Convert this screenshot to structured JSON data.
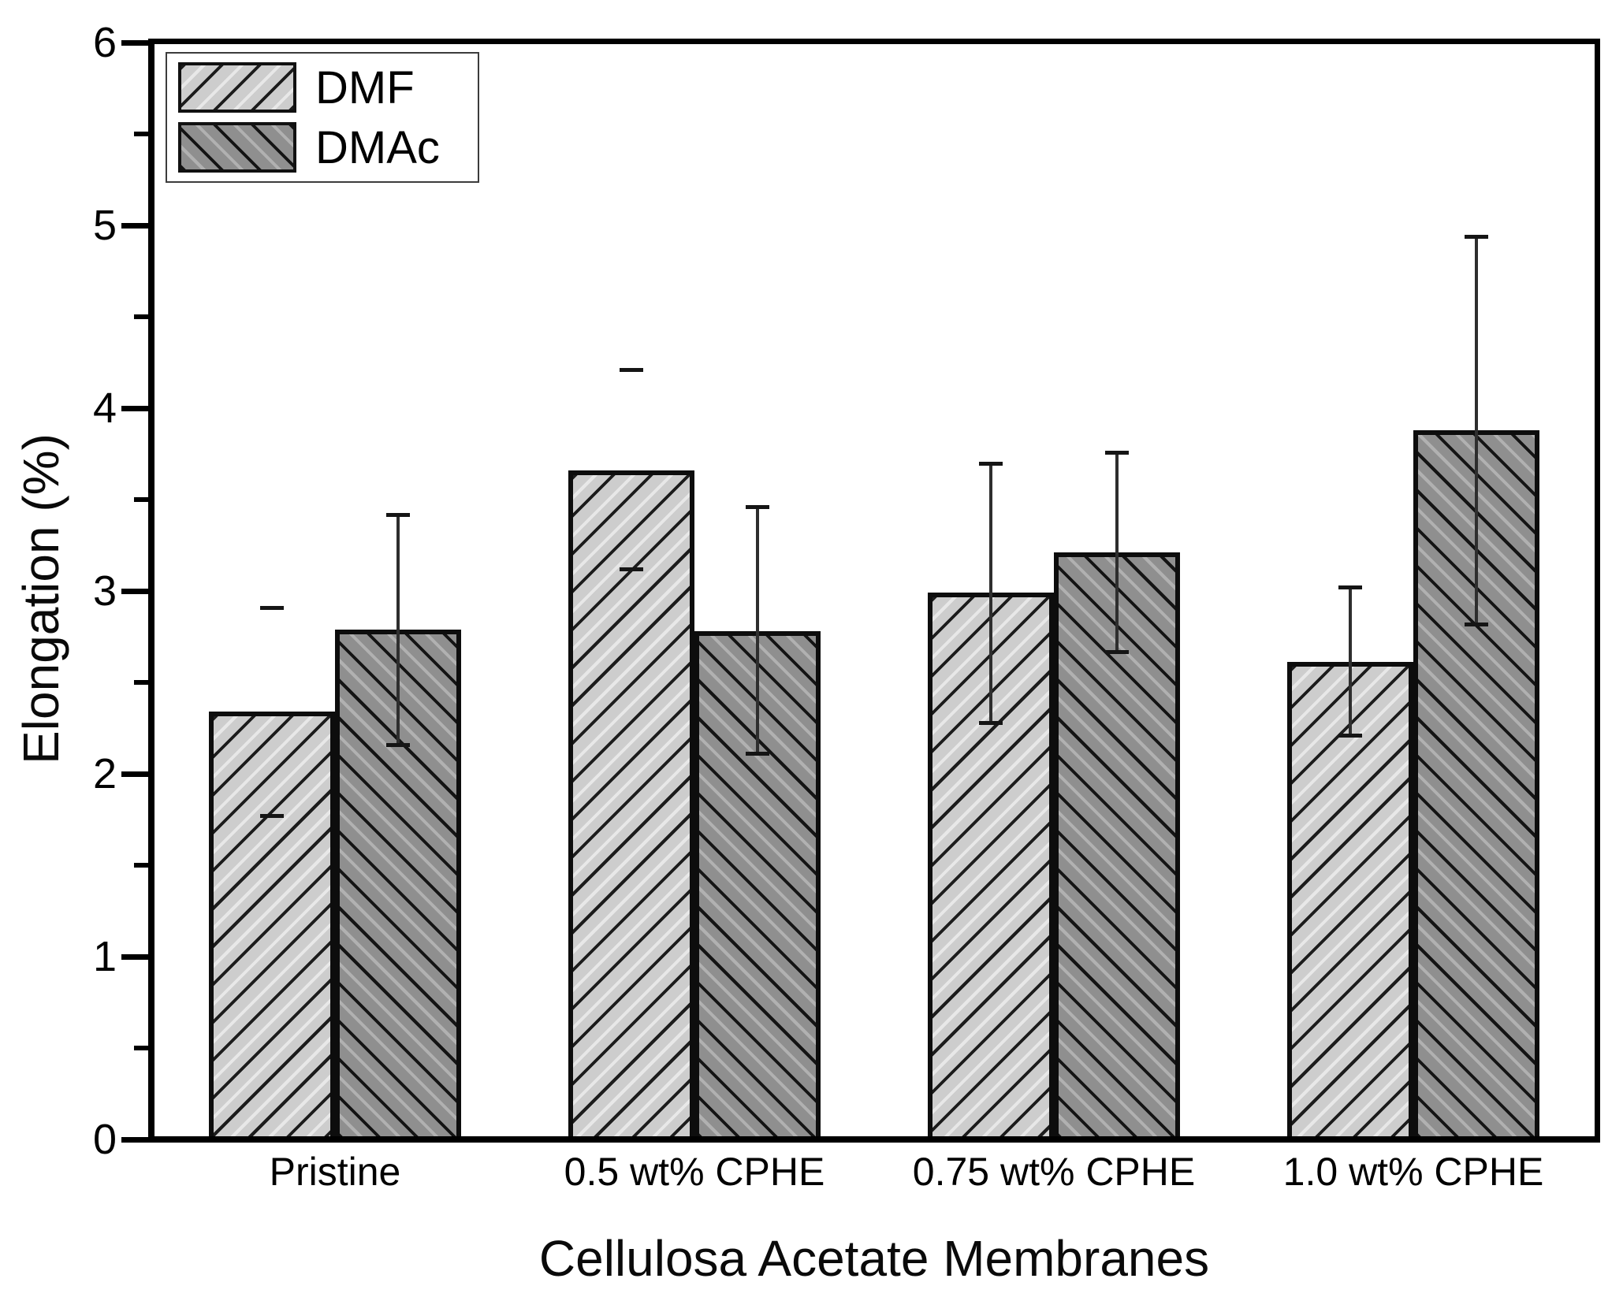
{
  "chart_data": {
    "type": "bar",
    "title": "",
    "xlabel": "Cellulosa Acetate Membranes",
    "ylabel": "Elongation (%)",
    "ylim": [
      0,
      6
    ],
    "yticks": [
      0,
      1,
      2,
      3,
      4,
      5,
      6
    ],
    "minor_tick_step": 0.5,
    "grid": false,
    "legend_position": "top-left",
    "background_color": "#ffffff",
    "categories": [
      "Pristine",
      "0.5 wt% CPHE",
      "0.75 wt% CPHE",
      "1.0 wt% CPHE"
    ],
    "series": [
      {
        "name": "DMF",
        "hatch": "/",
        "fill_color": "#cdcdcd",
        "edge_color": "#0d0d0d",
        "values": [
          2.34,
          3.66,
          2.99,
          2.61
        ],
        "error_low": [
          1.77,
          3.12,
          2.28,
          2.21
        ],
        "error_high": [
          2.91,
          4.21,
          3.7,
          3.02
        ],
        "error_line_visible": [
          false,
          false,
          true,
          true
        ]
      },
      {
        "name": "DMAc",
        "hatch": "\\",
        "fill_color": "#8f8f8f",
        "edge_color": "#0d0d0d",
        "values": [
          2.79,
          2.78,
          3.21,
          3.88
        ],
        "error_low": [
          2.16,
          2.11,
          2.67,
          2.82
        ],
        "error_high": [
          3.42,
          3.46,
          3.76,
          4.94
        ],
        "error_line_visible": [
          true,
          true,
          true,
          true
        ]
      }
    ]
  }
}
